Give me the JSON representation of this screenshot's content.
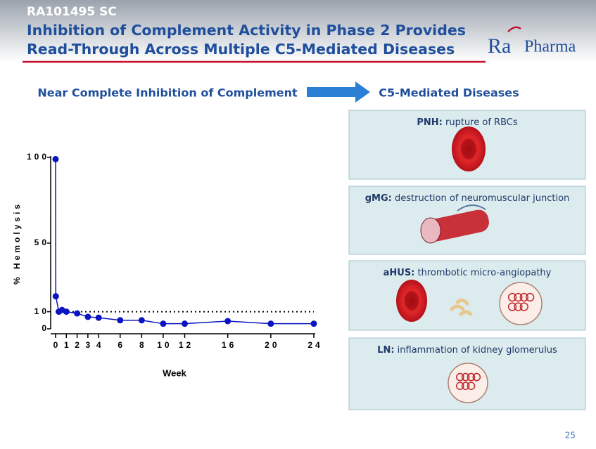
{
  "header": {
    "tag": "RA101495 SC",
    "title_lines": [
      "Inhibition of Complement Activity in Phase 2 Provides",
      "Read-Through Across Multiple C5-Mediated Diseases"
    ],
    "logo": {
      "mark": "Ra",
      "word": "Pharma"
    }
  },
  "left_heading": "Near Complete Inhibition of Complement",
  "right_heading": "C5-Mediated Diseases",
  "chart_data": {
    "type": "line",
    "x_label": "Week",
    "y_label": "% Hemolysis",
    "x": [
      0,
      0.02,
      0.3,
      0.6,
      1,
      2,
      3,
      4,
      6,
      8,
      10,
      12,
      16,
      20,
      24
    ],
    "values": [
      99,
      19,
      10,
      11,
      10,
      9,
      7,
      6.5,
      5,
      5,
      3,
      3,
      4.5,
      3,
      3
    ],
    "color": "#0a14c0",
    "xlim": [
      0,
      24
    ],
    "ylim": [
      0,
      100
    ],
    "xticks": [
      0,
      1,
      2,
      3,
      4,
      6,
      8,
      10,
      12,
      16,
      20,
      24
    ],
    "yticks": [
      0,
      10,
      50,
      100
    ],
    "reference_line": 10
  },
  "diseases": [
    {
      "label": "PNH:",
      "text": " rupture of RBCs"
    },
    {
      "label": "gMG:",
      "text": " destruction of neuromuscular junction"
    },
    {
      "label": "aHUS:",
      "text": " thrombotic micro-angiopathy"
    },
    {
      "label": "LN:",
      "text": " inflammation of kidney glomerulus"
    }
  ],
  "page_number": "25"
}
